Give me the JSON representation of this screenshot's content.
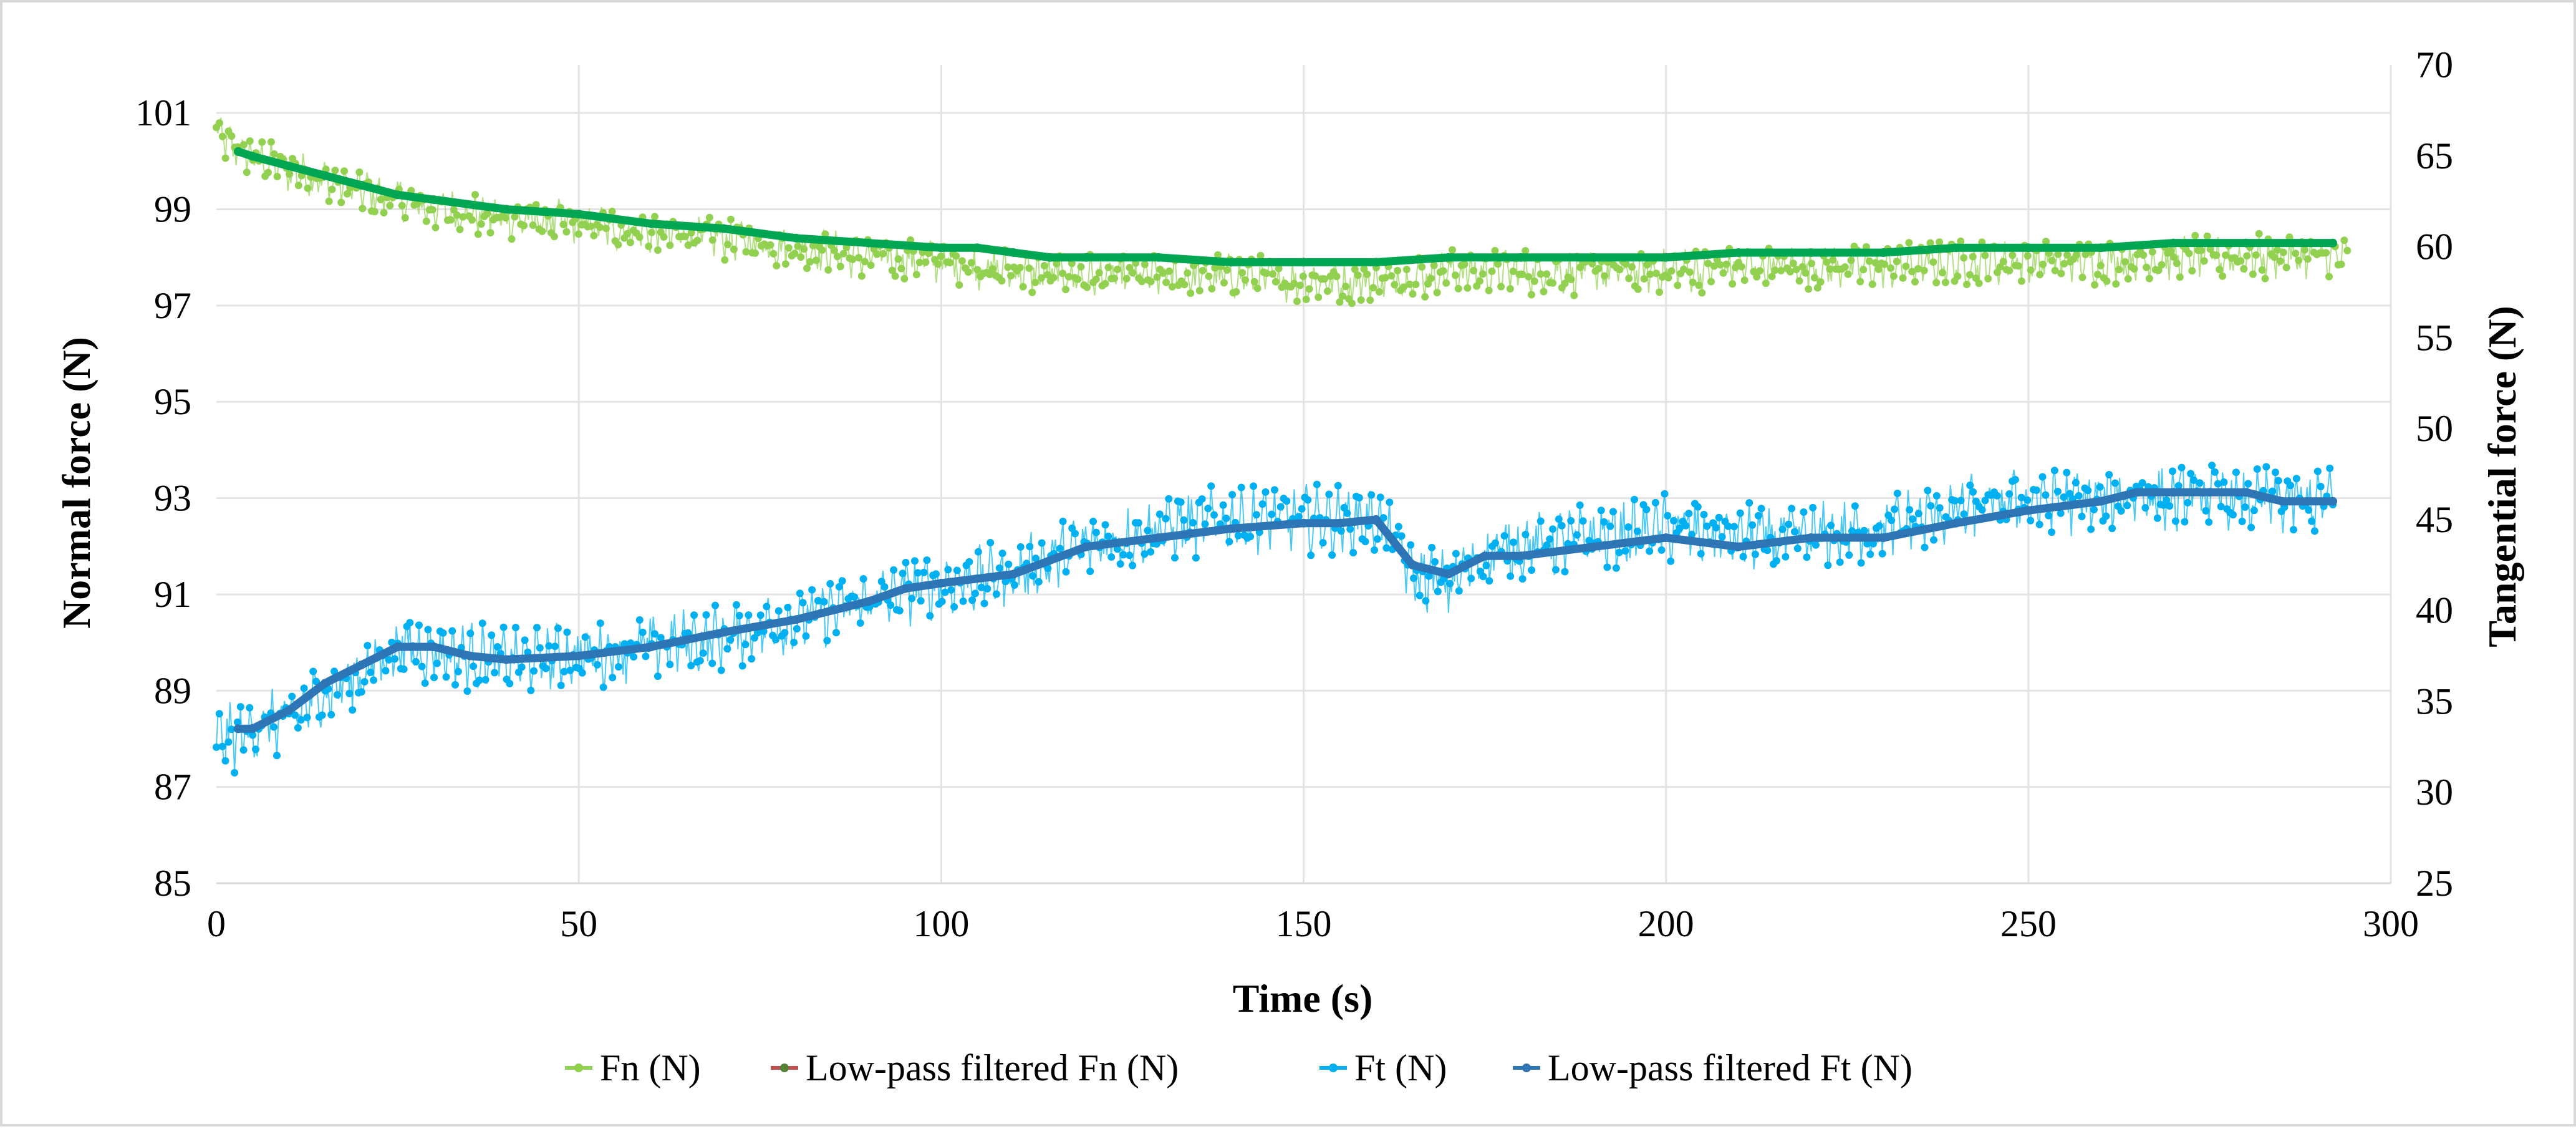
{
  "chart_data": {
    "type": "line",
    "title": "",
    "xlabel": "Time (s)",
    "ylabel_left": "Normal force  (N)",
    "ylabel_right": "Tangential force  (N)",
    "xlim": [
      0,
      300
    ],
    "ylim_left": [
      85,
      102
    ],
    "ylim_right": [
      25,
      70
    ],
    "x_ticks": [
      0,
      50,
      100,
      150,
      200,
      250,
      300
    ],
    "y_left_ticks": [
      85,
      87,
      89,
      91,
      93,
      95,
      97,
      99,
      101
    ],
    "y_right_ticks": [
      25,
      30,
      35,
      40,
      45,
      50,
      55,
      60,
      65,
      70
    ],
    "grid": "vertical",
    "legend_position": "bottom",
    "series": [
      {
        "name": "Fn (N)",
        "axis": "left",
        "color": "#92d050",
        "style": "noisy-markers",
        "x": [
          0,
          2,
          5,
          10,
          15,
          20,
          25,
          30,
          40,
          50,
          60,
          70,
          80,
          90,
          100,
          110,
          120,
          130,
          140,
          150,
          160,
          170,
          180,
          190,
          200,
          210,
          220,
          230,
          240,
          250,
          260,
          270,
          280,
          290,
          294
        ],
        "values": [
          100.6,
          100.3,
          100.1,
          99.8,
          99.6,
          99.4,
          99.2,
          99.0,
          98.8,
          98.7,
          98.5,
          98.4,
          98.2,
          98.0,
          97.9,
          97.7,
          97.6,
          97.6,
          97.6,
          97.5,
          97.5,
          97.7,
          97.7,
          97.7,
          97.7,
          97.8,
          97.8,
          97.8,
          97.9,
          97.9,
          97.9,
          98.0,
          98.0,
          98.0,
          98.0
        ],
        "noise": 0.5
      },
      {
        "name": "Low-pass filtered Fn (N)",
        "axis": "left",
        "color": "#00a651",
        "x": [
          3,
          5,
          10,
          15,
          20,
          25,
          30,
          40,
          50,
          60,
          70,
          80,
          90,
          100,
          105,
          110,
          115,
          120,
          130,
          140,
          150,
          160,
          170,
          180,
          190,
          200,
          210,
          220,
          230,
          240,
          250,
          260,
          270,
          280,
          292
        ],
        "values": [
          100.2,
          100.1,
          99.9,
          99.7,
          99.5,
          99.3,
          99.2,
          99.0,
          98.9,
          98.7,
          98.6,
          98.4,
          98.3,
          98.2,
          98.2,
          98.1,
          98.0,
          98.0,
          98.0,
          97.9,
          97.9,
          97.9,
          98.0,
          98.0,
          98.0,
          98.0,
          98.1,
          98.1,
          98.1,
          98.2,
          98.2,
          98.2,
          98.3,
          98.3,
          98.3
        ]
      },
      {
        "name": "Ft (N)",
        "axis": "right",
        "color": "#00b0f0",
        "style": "noisy-markers",
        "x": [
          0,
          3,
          5,
          10,
          15,
          20,
          25,
          30,
          35,
          40,
          50,
          60,
          70,
          80,
          90,
          100,
          110,
          120,
          130,
          140,
          150,
          155,
          160,
          163,
          165,
          170,
          175,
          180,
          190,
          200,
          210,
          220,
          230,
          240,
          250,
          260,
          265,
          270,
          275,
          280,
          285,
          292
        ],
        "values": [
          33.0,
          33.0,
          33.5,
          34.0,
          35.5,
          36.5,
          38.0,
          37.8,
          37.5,
          37.2,
          37.5,
          38.0,
          38.5,
          39.5,
          40.5,
          41.5,
          42.0,
          43.5,
          44.5,
          45.0,
          45.0,
          45.0,
          45.0,
          43.5,
          42.0,
          41.5,
          43.0,
          43.5,
          44.0,
          44.5,
          44.0,
          44.0,
          44.5,
          45.5,
          46.0,
          46.0,
          46.5,
          46.0,
          46.5,
          46.0,
          46.0,
          46.0
        ],
        "noise": 2.0
      },
      {
        "name": "Low-pass filtered Ft (N)",
        "axis": "right",
        "color": "#2e75b6",
        "x": [
          3,
          5,
          10,
          15,
          20,
          25,
          30,
          35,
          40,
          50,
          60,
          70,
          80,
          90,
          95,
          100,
          110,
          120,
          130,
          140,
          150,
          155,
          160,
          165,
          170,
          175,
          180,
          190,
          200,
          210,
          220,
          230,
          240,
          250,
          260,
          265,
          270,
          275,
          280,
          285,
          292
        ],
        "values": [
          33.5,
          33.5,
          34.5,
          36.0,
          37.0,
          38.0,
          38.0,
          37.5,
          37.3,
          37.5,
          38.0,
          38.8,
          39.5,
          40.5,
          41.2,
          41.5,
          42.0,
          43.5,
          44.0,
          44.5,
          44.8,
          44.8,
          45.0,
          42.5,
          42.0,
          43.0,
          43.0,
          43.5,
          44.0,
          43.5,
          44.0,
          44.0,
          44.8,
          45.5,
          46.0,
          46.5,
          46.5,
          46.5,
          46.5,
          46.0,
          46.0
        ]
      }
    ]
  }
}
